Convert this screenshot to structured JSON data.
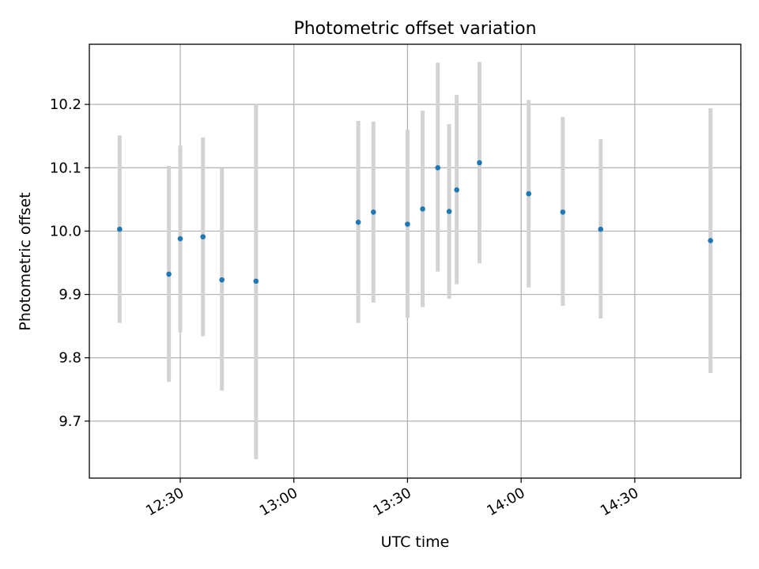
{
  "chart_data": {
    "type": "scatter",
    "title": "Photometric offset variation",
    "xlabel": "UTC time",
    "ylabel": "Photometric offset",
    "xlim": [
      "12:06",
      "14:58"
    ],
    "ylim": [
      9.61,
      10.295
    ],
    "xticks": [
      "12:30",
      "13:00",
      "13:30",
      "14:00",
      "14:30"
    ],
    "yticks": [
      9.7,
      9.8,
      9.9,
      10.0,
      10.1,
      10.2
    ],
    "grid": true,
    "colors": {
      "point": "#1f77b4",
      "errorbar": "#d3d3d3",
      "grid": "#b0b0b0"
    },
    "points": [
      {
        "t": "12:14",
        "y": 10.003,
        "ylo": 9.855,
        "yhi": 10.151
      },
      {
        "t": "12:27",
        "y": 9.932,
        "ylo": 9.762,
        "yhi": 10.103
      },
      {
        "t": "12:30",
        "y": 9.988,
        "ylo": 9.84,
        "yhi": 10.135
      },
      {
        "t": "12:36",
        "y": 9.991,
        "ylo": 9.834,
        "yhi": 10.148
      },
      {
        "t": "12:41",
        "y": 9.923,
        "ylo": 9.748,
        "yhi": 10.099
      },
      {
        "t": "12:50",
        "y": 9.921,
        "ylo": 9.64,
        "yhi": 10.2
      },
      {
        "t": "13:17",
        "y": 10.014,
        "ylo": 9.855,
        "yhi": 10.174
      },
      {
        "t": "13:21",
        "y": 10.03,
        "ylo": 9.887,
        "yhi": 10.173
      },
      {
        "t": "13:30",
        "y": 10.011,
        "ylo": 9.863,
        "yhi": 10.16
      },
      {
        "t": "13:34",
        "y": 10.035,
        "ylo": 9.88,
        "yhi": 10.19
      },
      {
        "t": "13:38",
        "y": 10.1,
        "ylo": 9.936,
        "yhi": 10.266
      },
      {
        "t": "13:41",
        "y": 10.031,
        "ylo": 9.893,
        "yhi": 10.169
      },
      {
        "t": "13:43",
        "y": 10.065,
        "ylo": 9.916,
        "yhi": 10.215
      },
      {
        "t": "13:49",
        "y": 10.108,
        "ylo": 9.949,
        "yhi": 10.267
      },
      {
        "t": "14:02",
        "y": 10.059,
        "ylo": 9.911,
        "yhi": 10.207
      },
      {
        "t": "14:11",
        "y": 10.03,
        "ylo": 9.882,
        "yhi": 10.18
      },
      {
        "t": "14:21",
        "y": 10.003,
        "ylo": 9.862,
        "yhi": 10.145
      },
      {
        "t": "14:50",
        "y": 9.985,
        "ylo": 9.776,
        "yhi": 10.194
      }
    ]
  }
}
